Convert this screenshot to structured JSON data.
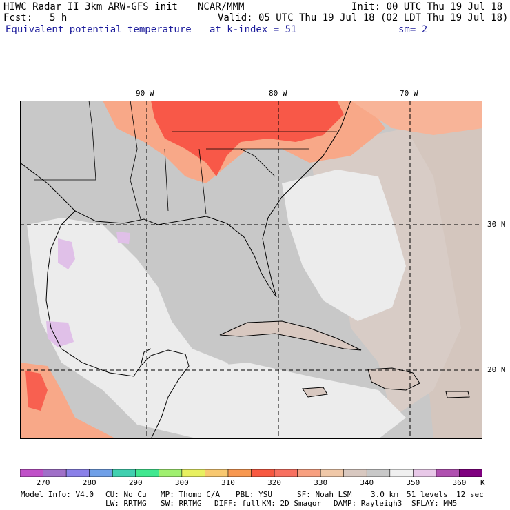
{
  "header": {
    "title_left": "HIWC Radar II 3km ARW-GFS init",
    "title_center": "NCAR/MMM",
    "init": "Init: 00 UTC Thu 19 Jul 18",
    "fcst_label": "Fcst:",
    "fcst_value": "5 h",
    "valid": "Valid: 05 UTC Thu 19 Jul 18 (02 LDT Thu 19 Jul 18)",
    "field": "Equivalent potential temperature",
    "level": "at k-index =  51",
    "smooth": "sm= 2"
  },
  "map": {
    "lon_labels": [
      "90 W",
      "80 W",
      "70 W"
    ],
    "lat_labels": [
      "30 N",
      "20 N"
    ]
  },
  "colorbar": {
    "unit": "K",
    "tick_labels": [
      "270",
      "280",
      "290",
      "300",
      "310",
      "320",
      "330",
      "340",
      "350",
      "360"
    ],
    "colors": [
      "#c050c8",
      "#a070c8",
      "#8a80e8",
      "#70a0e8",
      "#40d0b0",
      "#40e890",
      "#a0f070",
      "#e8f060",
      "#f8c870",
      "#f89850",
      "#f85840",
      "#f87060",
      "#f8a080",
      "#f0c8a8",
      "#d8c8c0",
      "#c8c8c8",
      "#f0f0f0",
      "#e8c8e8",
      "#b050b0",
      "#800080"
    ]
  },
  "footer": {
    "line1": [
      "Model Info: V4.0",
      "CU: No Cu",
      "MP: Thomp C/A",
      "PBL: YSU",
      "SF: Noah LSM",
      "3.0 km",
      "51 levels",
      "12 sec"
    ],
    "line2": [
      "LW: RRTMG",
      "SW: RRTMG",
      "DIFF: full",
      "KM: 2D Smagor",
      "DAMP: Rayleigh3",
      "SFLAY: MM5"
    ]
  },
  "colors": {
    "land_gray": "#c8c8c8",
    "sea_light": "#ececec",
    "warm_tan": "#d8c8c0",
    "salmon": "#f8a888",
    "red": "#f85848",
    "lavender": "#e0c0e8",
    "title_blue": "#1e1e9c"
  }
}
